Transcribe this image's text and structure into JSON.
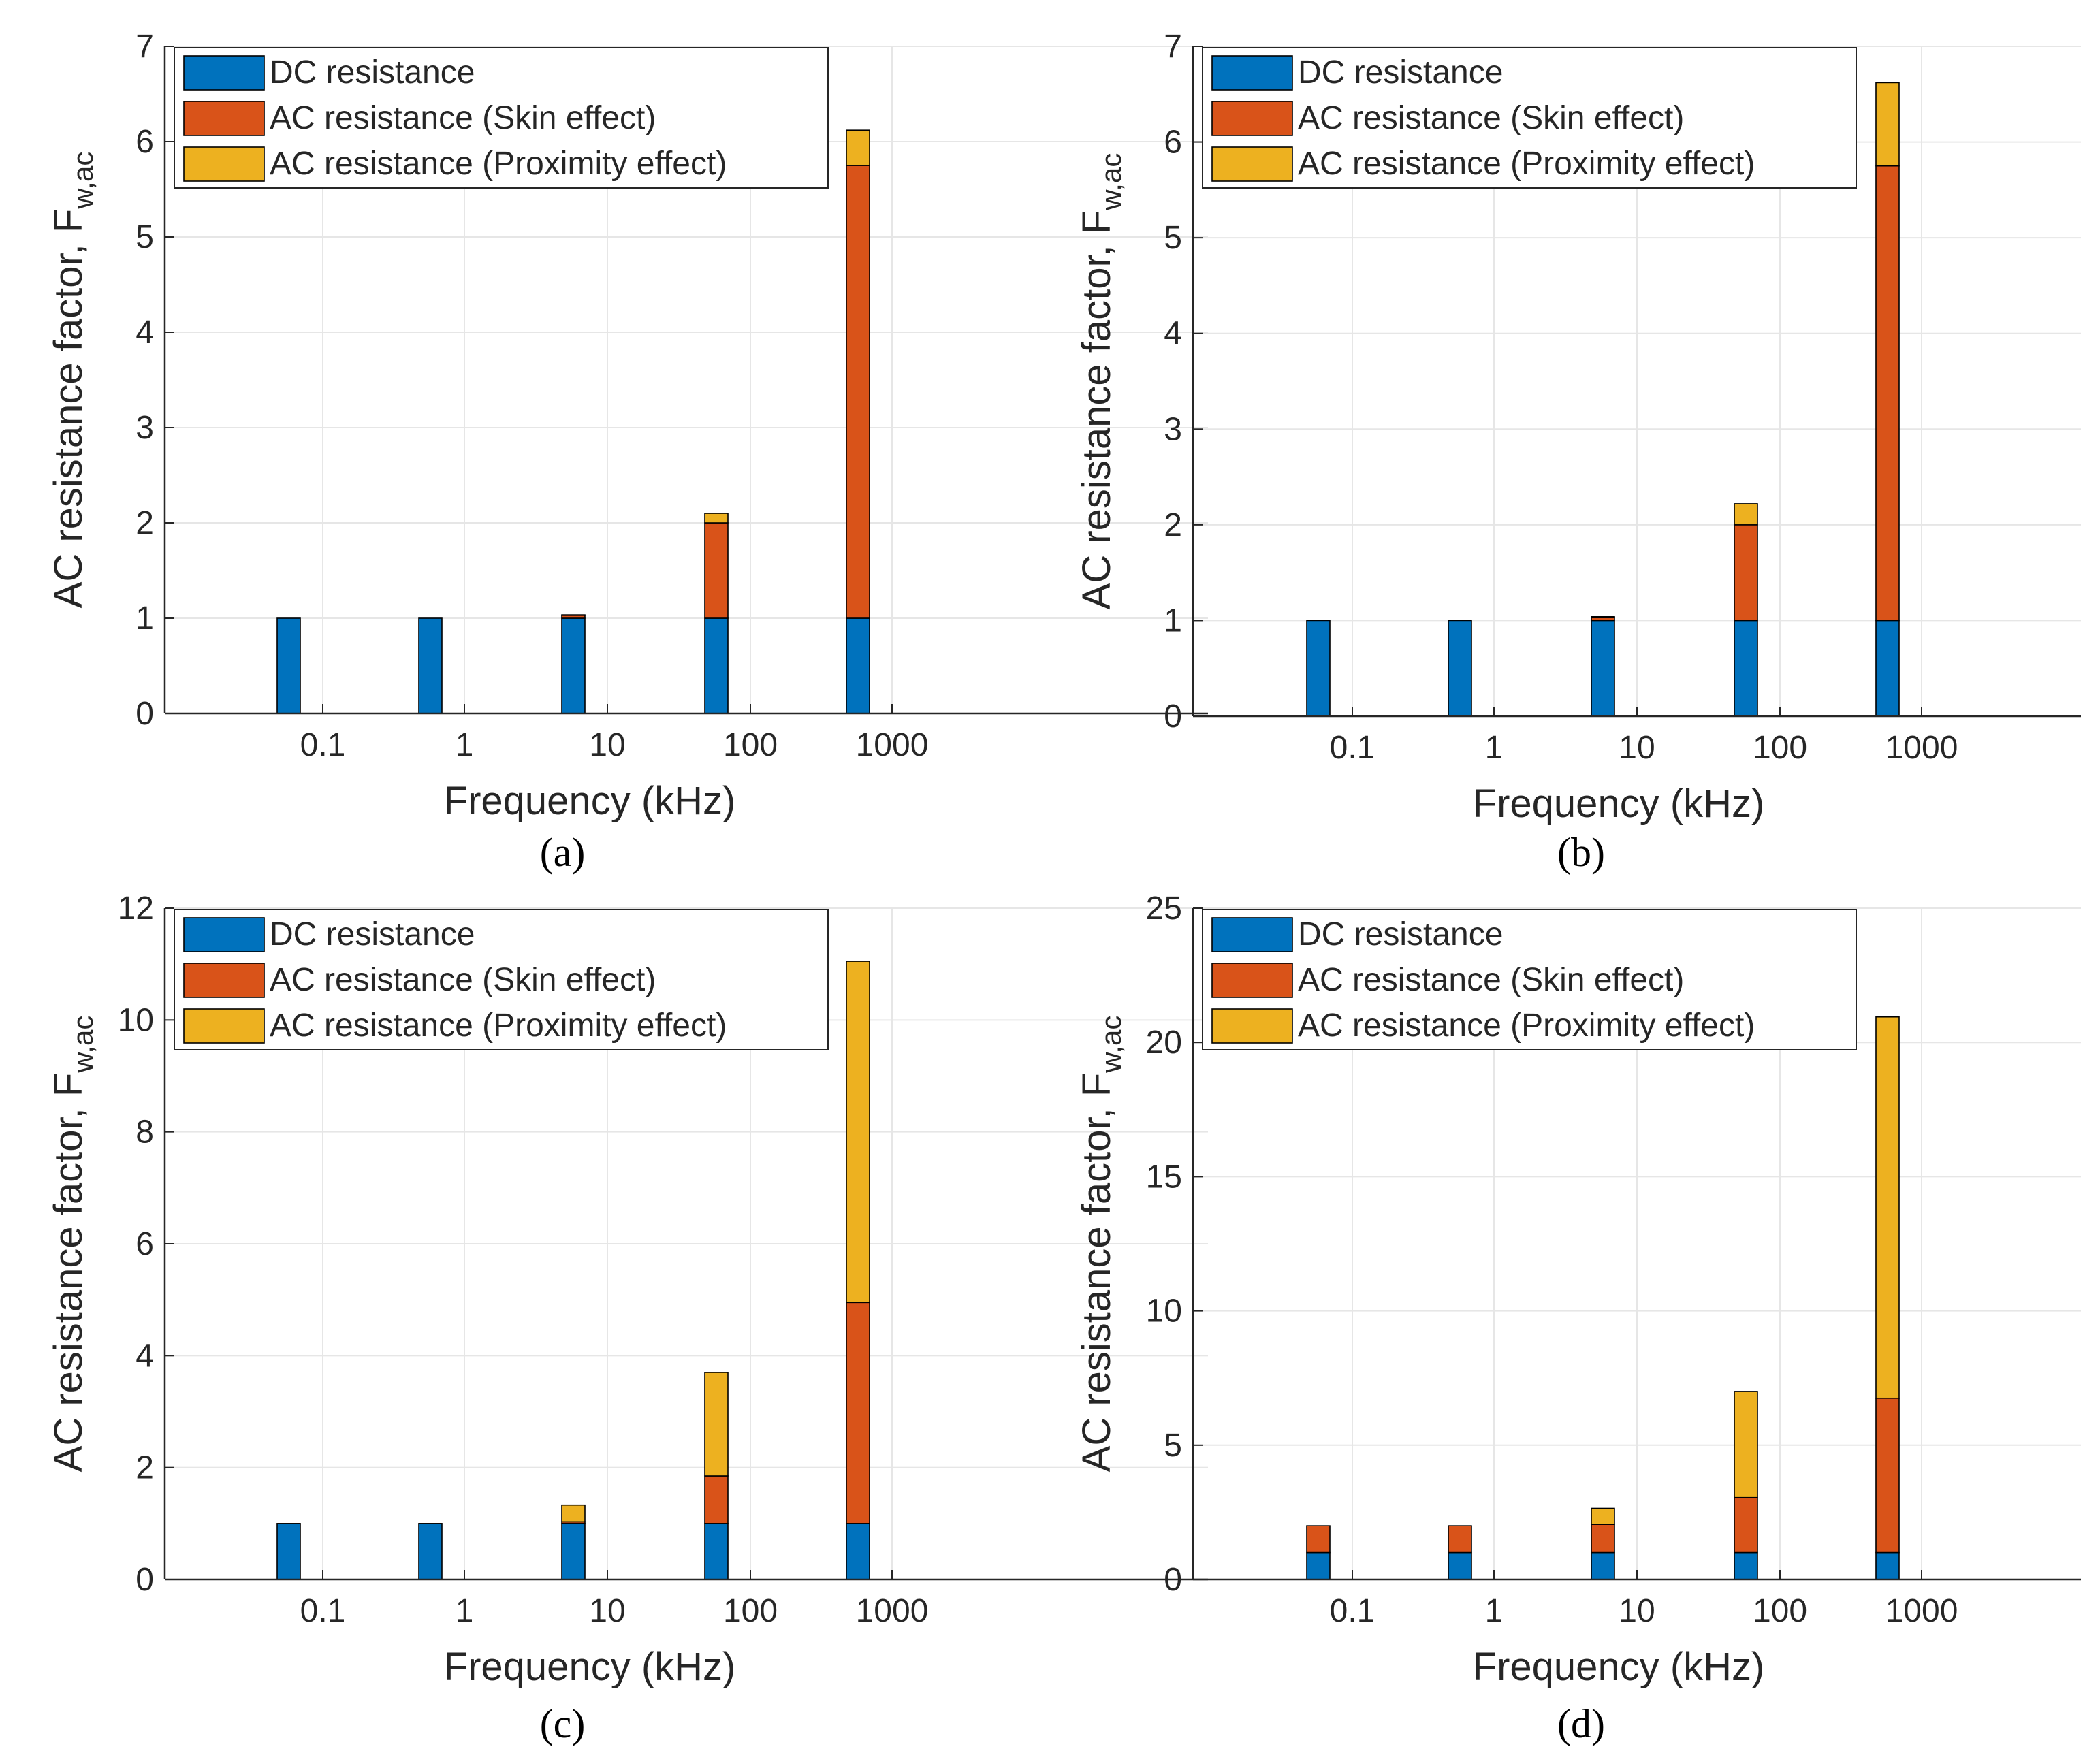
{
  "figure": {
    "chart_data": [
      {
        "type": "bar",
        "stacked": true,
        "caption": "(a)",
        "categories": [
          "0.1",
          "1",
          "10",
          "100",
          "1000"
        ],
        "xlabel": "Frequency (kHz)",
        "ylabel_main": "AC resistance factor, F",
        "ylabel_sub": "w,ac",
        "ylim": [
          0,
          7
        ],
        "yticks": [
          0,
          1,
          2,
          3,
          4,
          5,
          6,
          7
        ],
        "grid": true,
        "legend_position": "top-left",
        "series": [
          {
            "name": "DC resistance",
            "color": "#0072BD",
            "values": [
              1,
              1,
              1,
              1,
              1
            ]
          },
          {
            "name": "AC resistance (Skin effect)",
            "color": "#D95319",
            "values": [
              0,
              0,
              0.03,
              1.0,
              4.75
            ]
          },
          {
            "name": "AC resistance (Proximity effect)",
            "color": "#EDB120",
            "values": [
              0,
              0,
              0.005,
              0.1,
              0.37
            ]
          }
        ]
      },
      {
        "type": "bar",
        "stacked": true,
        "caption": "(b)",
        "categories": [
          "0.1",
          "1",
          "10",
          "100",
          "1000"
        ],
        "xlabel": "Frequency (kHz)",
        "ylabel_main": "AC resistance factor, F",
        "ylabel_sub": "w,ac",
        "ylim": [
          0,
          7
        ],
        "yticks": [
          0,
          1,
          2,
          3,
          4,
          5,
          6,
          7
        ],
        "grid": true,
        "legend_position": "top-left",
        "series": [
          {
            "name": "DC resistance",
            "color": "#0072BD",
            "values": [
              1,
              1,
              1,
              1,
              1
            ]
          },
          {
            "name": "AC resistance (Skin effect)",
            "color": "#D95319",
            "values": [
              0,
              0,
              0.03,
              1.0,
              4.75
            ]
          },
          {
            "name": "AC resistance (Proximity effect)",
            "color": "#EDB120",
            "values": [
              0,
              0,
              0.01,
              0.22,
              0.87
            ]
          }
        ]
      },
      {
        "type": "bar",
        "stacked": true,
        "caption": "(c)",
        "categories": [
          "0.1",
          "1",
          "10",
          "100",
          "1000"
        ],
        "xlabel": "Frequency (kHz)",
        "ylabel_main": "AC resistance factor, F",
        "ylabel_sub": "w,ac",
        "ylim": [
          0,
          12
        ],
        "yticks": [
          0,
          2,
          4,
          6,
          8,
          10,
          12
        ],
        "grid": true,
        "legend_position": "top-left",
        "series": [
          {
            "name": "DC resistance",
            "color": "#0072BD",
            "values": [
              1,
              1,
              1,
              1,
              1
            ]
          },
          {
            "name": "AC resistance (Skin effect)",
            "color": "#D95319",
            "values": [
              0,
              0,
              0.03,
              0.85,
              3.95
            ]
          },
          {
            "name": "AC resistance (Proximity effect)",
            "color": "#EDB120",
            "values": [
              0,
              0,
              0.3,
              1.85,
              6.1
            ]
          }
        ]
      },
      {
        "type": "bar",
        "stacked": true,
        "caption": "(d)",
        "categories": [
          "0.1",
          "1",
          "10",
          "100",
          "1000"
        ],
        "xlabel": "Frequency (kHz)",
        "ylabel_main": "AC resistance factor, F",
        "ylabel_sub": "w,ac",
        "ylim": [
          0,
          25
        ],
        "yticks": [
          0,
          5,
          10,
          15,
          20,
          25
        ],
        "grid": true,
        "legend_position": "top-left",
        "series": [
          {
            "name": "DC resistance",
            "color": "#0072BD",
            "values": [
              1,
              1,
              1,
              1,
              1
            ]
          },
          {
            "name": "AC resistance (Skin effect)",
            "color": "#D95319",
            "values": [
              1,
              1,
              1.05,
              2.05,
              5.75
            ]
          },
          {
            "name": "AC resistance (Proximity effect)",
            "color": "#EDB120",
            "values": [
              0,
              0,
              0.6,
              3.95,
              14.2
            ]
          }
        ]
      }
    ]
  }
}
